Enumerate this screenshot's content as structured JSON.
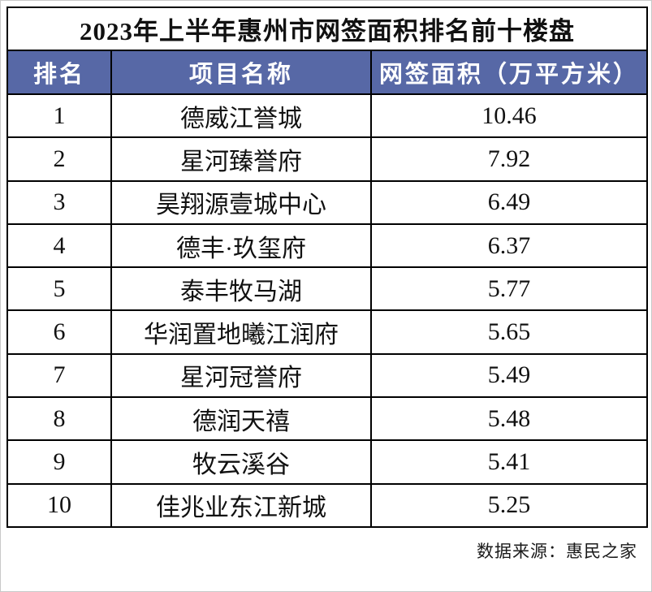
{
  "title": "2023年上半年惠州市网签面积排名前十楼盘",
  "table": {
    "columns": [
      "排名",
      "项目名称",
      "网签面积（万平方米）"
    ],
    "rows": [
      {
        "rank": "1",
        "name": "德威江誉城",
        "area": "10.46"
      },
      {
        "rank": "2",
        "name": "星河臻誉府",
        "area": "7.92"
      },
      {
        "rank": "3",
        "name": "昊翔源壹城中心",
        "area": "6.49"
      },
      {
        "rank": "4",
        "name": "德丰·玖玺府",
        "area": "6.37"
      },
      {
        "rank": "5",
        "name": "泰丰牧马湖",
        "area": "5.77"
      },
      {
        "rank": "6",
        "name": "华润置地曦江润府",
        "area": "5.65"
      },
      {
        "rank": "7",
        "name": "星河冠誉府",
        "area": "5.49"
      },
      {
        "rank": "8",
        "name": "德润天禧",
        "area": "5.48"
      },
      {
        "rank": "9",
        "name": "牧云溪谷",
        "area": "5.41"
      },
      {
        "rank": "10",
        "name": "佳兆业东江新城",
        "area": "5.25"
      }
    ]
  },
  "footer": {
    "source_label": "数据来源：惠民之家"
  },
  "colors": {
    "header_bg": "#5768A6",
    "header_text": "#FFFFFF",
    "body_text": "#111111",
    "border": "#000000"
  },
  "chart_data": {
    "type": "table",
    "title": "2023年上半年惠州市网签面积排名前十楼盘",
    "columns": [
      "排名",
      "项目名称",
      "网签面积（万平方米）"
    ],
    "categories": [
      "德威江誉城",
      "星河臻誉府",
      "昊翔源壹城中心",
      "德丰·玖玺府",
      "泰丰牧马湖",
      "华润置地曦江润府",
      "星河冠誉府",
      "德润天禧",
      "牧云溪谷",
      "佳兆业东江新城"
    ],
    "values": [
      10.46,
      7.92,
      6.49,
      6.37,
      5.77,
      5.65,
      5.49,
      5.48,
      5.41,
      5.25
    ]
  }
}
